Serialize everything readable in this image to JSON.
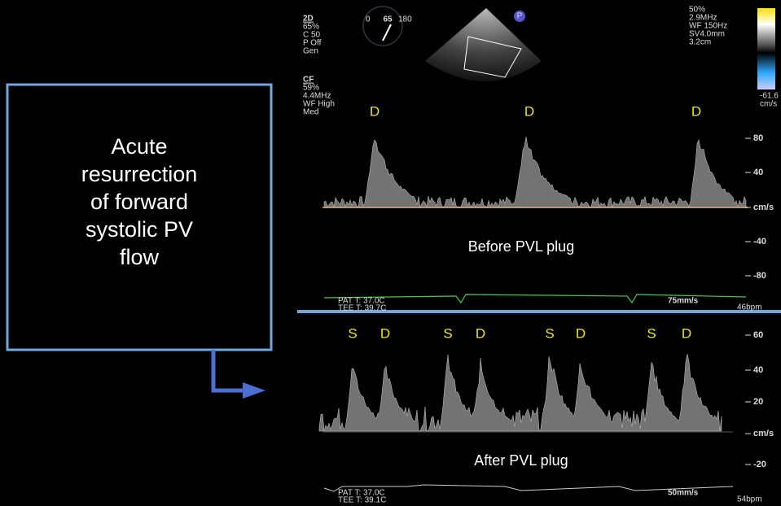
{
  "callout": {
    "lines": [
      "Acute",
      "resurrection",
      "of forward",
      "systolic PV",
      "flow"
    ]
  },
  "settings_left": {
    "mode_2d": {
      "label": "2D",
      "values": [
        "65%",
        "C 50",
        "P Off",
        "Gen"
      ]
    },
    "mode_cf": {
      "label": "CF",
      "values": [
        "59%",
        "4.4MHz",
        "WF High",
        "Med"
      ]
    }
  },
  "angle_dial": {
    "min": 0,
    "value": 65,
    "max": 180
  },
  "probe_marker": "P",
  "settings_right": [
    "50%",
    "2.9MHz",
    "WF 150Hz",
    "SV4.0mm",
    "3.2cm"
  ],
  "color_bar": {
    "min_label": "-61.6",
    "unit": "cm/s"
  },
  "before": {
    "caption": "Before PVL plug",
    "wave_labels": [
      "D",
      "D",
      "D"
    ],
    "scale": [
      80,
      40,
      "cm/s",
      -40,
      -80
    ],
    "footer": {
      "pat": "PAT T: 37.0C",
      "tee": "TEE T: 39.7C",
      "speed": "75mm/s",
      "hr": "46bpm"
    }
  },
  "after": {
    "caption": "After PVL plug",
    "wave_labels": [
      "S",
      "D",
      "S",
      "D",
      "S",
      "D",
      "S",
      "D"
    ],
    "scale": [
      60,
      40,
      20,
      "cm/s",
      -20
    ],
    "footer": {
      "pat": "PAT T: 37.0C",
      "tee": "TEE T: 39.1C",
      "speed": "50mm/s",
      "hr": "54bpm"
    }
  }
}
